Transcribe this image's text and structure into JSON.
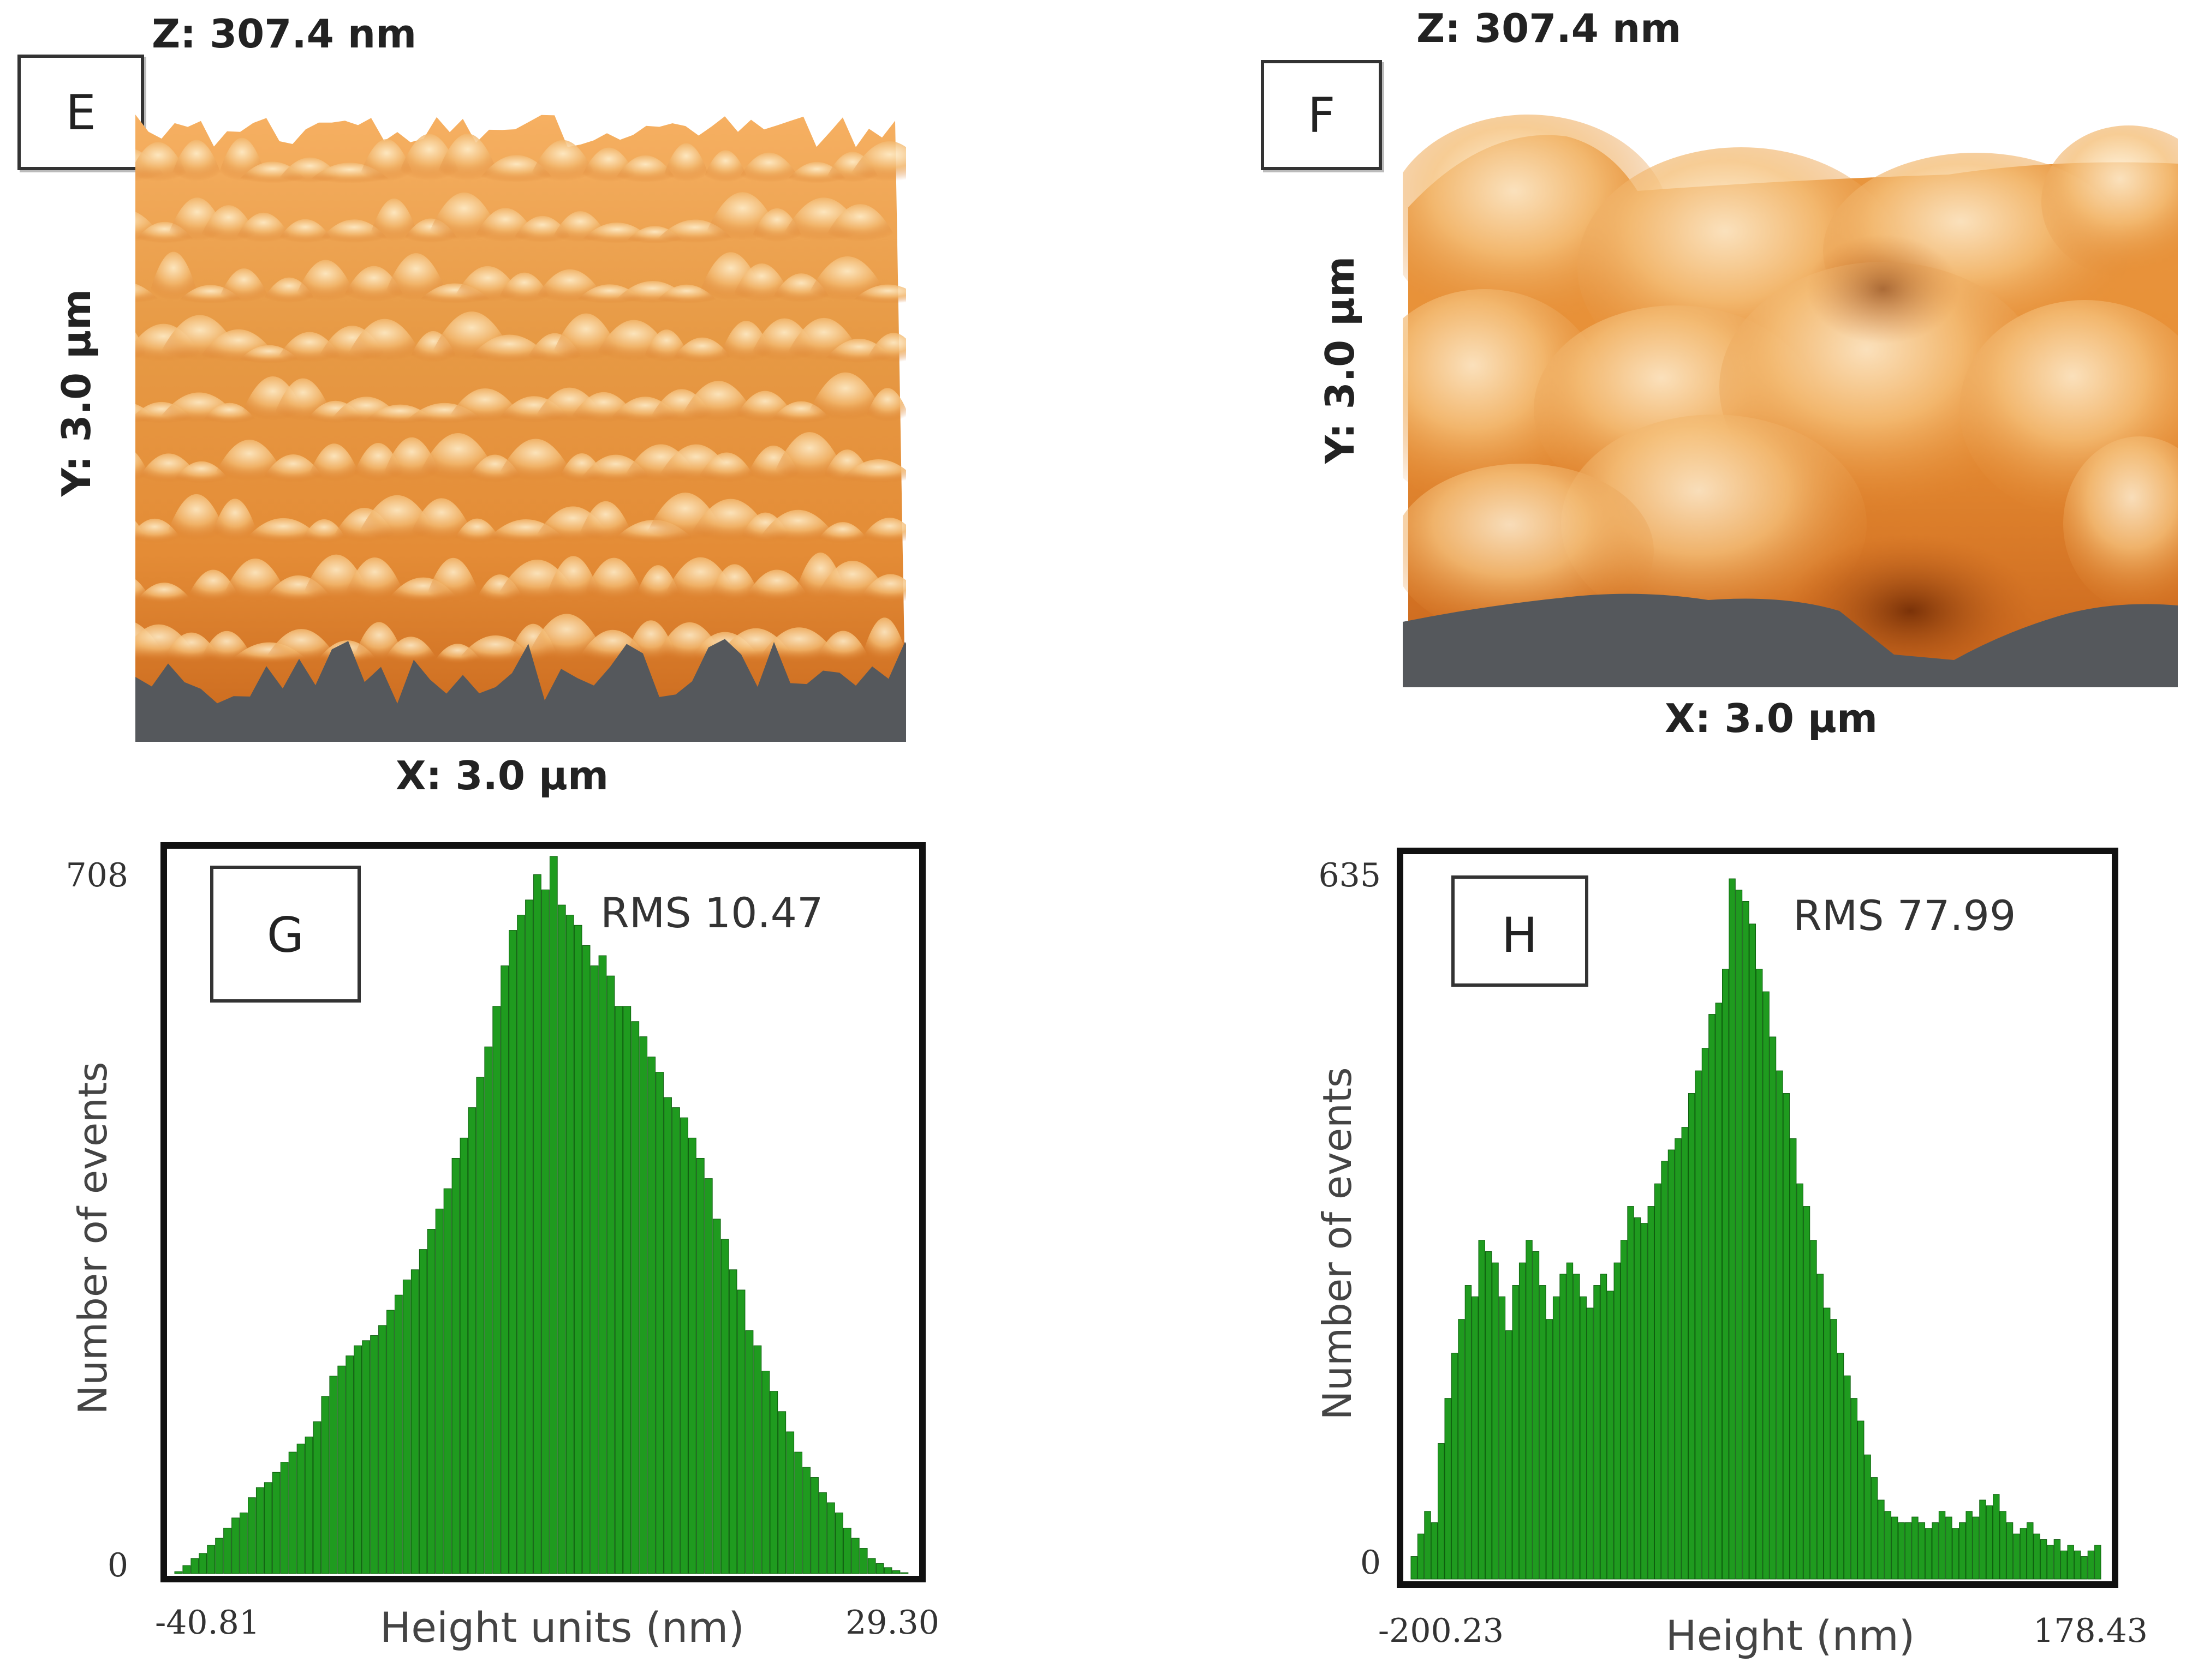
{
  "panels": {
    "E": {
      "label": "E",
      "z_label": "Z: 307.4 nm",
      "y_label": "Y: 3.0 µm",
      "x_label": "X: 3.0 µm",
      "surface_color": "#d9822b"
    },
    "F": {
      "label": "F",
      "z_label": "Z: 307.4 nm",
      "y_label": "Y: 3.0 µm",
      "x_label": "X: 3.0 µm",
      "surface_color": "#d9822b"
    }
  },
  "colors": {
    "bar_fill": "#1f9b1f",
    "bar_stroke": "#0d5e0d",
    "afm_shadow": "#55585c",
    "afm_dark": "#9b4a12",
    "afm_mid": "#e08a35",
    "afm_light": "#fff1d0"
  },
  "chart_data": [
    {
      "id": "G",
      "type": "bar",
      "panel_label": "G",
      "title": "RMS 10.47",
      "xlabel": "Height units (nm)",
      "ylabel": "Number of events",
      "xlim": [
        -40.81,
        29.3
      ],
      "ylim": [
        0,
        708
      ],
      "x_tick_labels": [
        "-40.81",
        "29.30"
      ],
      "y_tick_labels": [
        "708",
        "0"
      ],
      "values": [
        2,
        8,
        15,
        20,
        28,
        35,
        45,
        55,
        60,
        75,
        85,
        90,
        100,
        110,
        120,
        128,
        135,
        150,
        175,
        195,
        205,
        215,
        225,
        230,
        235,
        245,
        260,
        275,
        290,
        300,
        320,
        340,
        360,
        380,
        410,
        430,
        460,
        490,
        520,
        560,
        600,
        635,
        650,
        665,
        690,
        675,
        708,
        660,
        650,
        640,
        620,
        600,
        610,
        590,
        560,
        560,
        545,
        530,
        510,
        495,
        470,
        460,
        450,
        430,
        410,
        390,
        350,
        330,
        300,
        280,
        240,
        225,
        200,
        180,
        160,
        140,
        120,
        105,
        95,
        80,
        70,
        60,
        45,
        35,
        25,
        15,
        10,
        6,
        3,
        1
      ]
    },
    {
      "id": "H",
      "type": "bar",
      "panel_label": "H",
      "title": "RMS 77.99",
      "xlabel": "Height (nm)",
      "ylabel": "Number of events",
      "xlim": [
        -200.23,
        178.43
      ],
      "ylim": [
        0,
        635
      ],
      "x_tick_labels": [
        "-200.23",
        "178.43"
      ],
      "y_tick_labels": [
        "635",
        "0"
      ],
      "values": [
        20,
        40,
        60,
        50,
        120,
        160,
        200,
        230,
        260,
        250,
        300,
        290,
        280,
        250,
        220,
        260,
        280,
        300,
        290,
        260,
        230,
        250,
        270,
        280,
        270,
        250,
        240,
        260,
        270,
        255,
        280,
        300,
        330,
        320,
        315,
        330,
        350,
        370,
        380,
        390,
        400,
        430,
        450,
        470,
        500,
        510,
        540,
        620,
        610,
        600,
        580,
        540,
        520,
        480,
        450,
        430,
        390,
        350,
        330,
        300,
        270,
        240,
        230,
        200,
        180,
        160,
        140,
        110,
        90,
        70,
        60,
        55,
        50,
        50,
        55,
        50,
        45,
        50,
        60,
        55,
        45,
        50,
        60,
        55,
        70,
        65,
        75,
        60,
        50,
        40,
        45,
        50,
        40,
        35,
        30,
        35,
        25,
        30,
        25,
        20,
        25,
        30
      ]
    }
  ]
}
